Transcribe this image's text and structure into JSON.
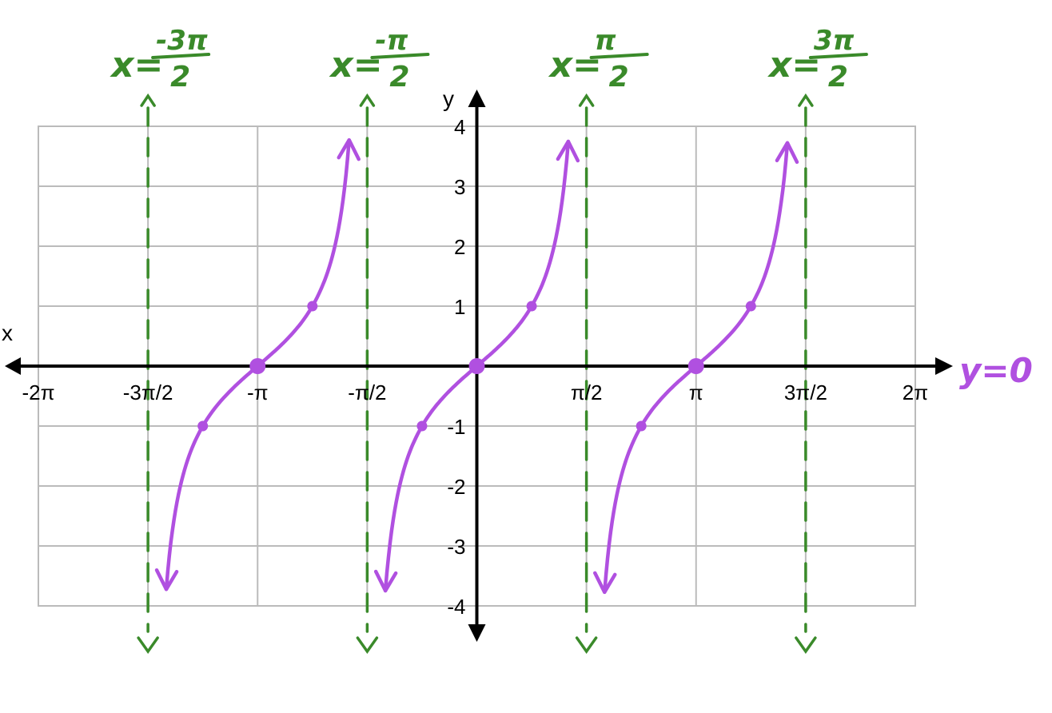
{
  "chart_data": {
    "type": "line",
    "xlabel": "x",
    "ylabel": "y",
    "xlim": [
      -6.2832,
      6.2832
    ],
    "ylim": [
      -4,
      4
    ],
    "grid": true,
    "x_ticks": [
      {
        "value": -6.2832,
        "label": "-2π"
      },
      {
        "value": -4.7124,
        "label": "-3π/2"
      },
      {
        "value": -3.1416,
        "label": "-π"
      },
      {
        "value": -1.5708,
        "label": "-π/2"
      },
      {
        "value": 1.5708,
        "label": "π/2"
      },
      {
        "value": 3.1416,
        "label": "π"
      },
      {
        "value": 4.7124,
        "label": "3π/2"
      },
      {
        "value": 6.2832,
        "label": "2π"
      }
    ],
    "y_ticks": [
      {
        "value": 4,
        "label": "4"
      },
      {
        "value": 3,
        "label": "3"
      },
      {
        "value": 2,
        "label": "2"
      },
      {
        "value": 1,
        "label": "1"
      },
      {
        "value": -1,
        "label": "-1"
      },
      {
        "value": -2,
        "label": "-2"
      },
      {
        "value": -3,
        "label": "-3"
      },
      {
        "value": -4,
        "label": "-4"
      }
    ],
    "curve_branches": [
      {
        "center": -3.1416,
        "x_min": -4.45,
        "x_max": -1.83
      },
      {
        "center": 0,
        "x_min": -1.31,
        "x_max": 1.31
      },
      {
        "center": 3.1416,
        "x_min": 1.83,
        "x_max": 4.45
      }
    ],
    "key_points": [
      {
        "x": -3.927,
        "y": -1
      },
      {
        "x": -3.1416,
        "y": 0
      },
      {
        "x": -2.3562,
        "y": 1
      },
      {
        "x": -0.7854,
        "y": -1
      },
      {
        "x": 0,
        "y": 0
      },
      {
        "x": 0.7854,
        "y": 1
      },
      {
        "x": 2.3562,
        "y": -1
      },
      {
        "x": 3.1416,
        "y": 0
      },
      {
        "x": 3.927,
        "y": 1
      }
    ],
    "asymptotes": [
      {
        "x": -4.7124,
        "label_lhs": "x=",
        "label_num": "-3π",
        "label_den": "2"
      },
      {
        "x": -1.5708,
        "label_lhs": "x=",
        "label_num": "-π",
        "label_den": "2"
      },
      {
        "x": 1.5708,
        "label_lhs": "x=",
        "label_num": "π",
        "label_den": "2"
      },
      {
        "x": 4.7124,
        "label_lhs": "x=",
        "label_num": "3π",
        "label_den": "2"
      }
    ],
    "horizontal_asymptote_label": "y=0",
    "colors": {
      "curve": "#b050e0",
      "asymptote": "#3a8a2a",
      "grid": "#bbbbbb",
      "axis": "#000000"
    }
  }
}
